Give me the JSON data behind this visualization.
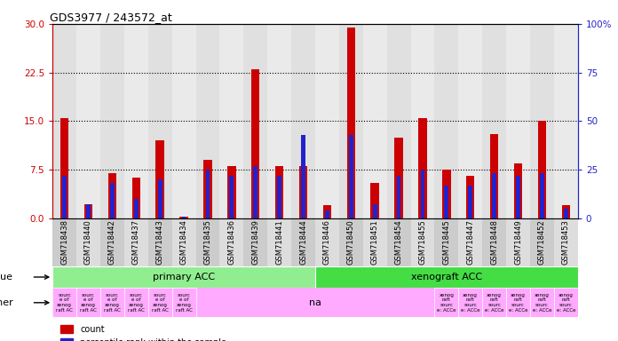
{
  "title": "GDS3977 / 243572_at",
  "samples": [
    "GSM718438",
    "GSM718440",
    "GSM718442",
    "GSM718437",
    "GSM718443",
    "GSM718434",
    "GSM718435",
    "GSM718436",
    "GSM718439",
    "GSM718441",
    "GSM718444",
    "GSM718446",
    "GSM718450",
    "GSM718451",
    "GSM718454",
    "GSM718455",
    "GSM718445",
    "GSM718447",
    "GSM718448",
    "GSM718449",
    "GSM718452",
    "GSM718453"
  ],
  "count": [
    15.5,
    2.2,
    7.0,
    6.3,
    12.0,
    0.3,
    9.0,
    8.0,
    23.0,
    8.0,
    8.0,
    2.0,
    29.5,
    5.5,
    12.5,
    15.5,
    7.5,
    6.5,
    13.0,
    8.5,
    15.0,
    2.0
  ],
  "percentile": [
    22,
    7,
    18,
    10,
    20,
    1,
    25,
    22,
    27,
    22,
    43,
    4,
    43,
    7,
    22,
    25,
    17,
    17,
    23,
    22,
    23,
    5
  ],
  "tissue_groups": [
    {
      "label": "primary ACC",
      "start": 0,
      "end": 11,
      "color": "#90ee90"
    },
    {
      "label": "xenograft ACC",
      "start": 11,
      "end": 22,
      "color": "#44dd44"
    }
  ],
  "other_per_sample": [
    "sourc\ne of\nxenog\nraft AC",
    "sourc\ne of\nxenog\nraft AC",
    "sourc\ne of\nxenog\nraft AC",
    "sourc\ne of\nxenog\nraft AC",
    "sourc\ne of\nxenog\nraft AC",
    "sourc\ne of\nxenog\nraft AC",
    "",
    "",
    "",
    "",
    "",
    "",
    "",
    "",
    "",
    "",
    "xenog\nraft\nsourc\ne: ACCe",
    "xenog\nraft\nsourc\ne: ACCe",
    "xenog\nraft\nsourc\ne: ACCe",
    "xenog\nraft\nsourc\ne: ACCe",
    "xenog\nraft\nsourc\ne: ACCe",
    "xenog\nraft\nsourc\ne: ACCe"
  ],
  "other_big_regions": [
    {
      "start": 0,
      "end": 6,
      "label": "",
      "color": "#ffaaff"
    },
    {
      "start": 6,
      "end": 16,
      "label": "na",
      "color": "#ffaaff"
    },
    {
      "start": 16,
      "end": 22,
      "label": "",
      "color": "#ffaaff"
    }
  ],
  "ylim_left": [
    0,
    30
  ],
  "ylim_right": [
    0,
    100
  ],
  "yticks_left": [
    0,
    7.5,
    15,
    22.5,
    30
  ],
  "yticks_right": [
    0,
    25,
    50,
    75,
    100
  ],
  "bar_color_red": "#cc0000",
  "bar_color_blue": "#2222cc",
  "bg_color": "#ffffff",
  "left_axis_color": "#cc0000",
  "right_axis_color": "#2222cc",
  "tick_bg_even": "#cccccc",
  "tick_bg_odd": "#dddddd"
}
